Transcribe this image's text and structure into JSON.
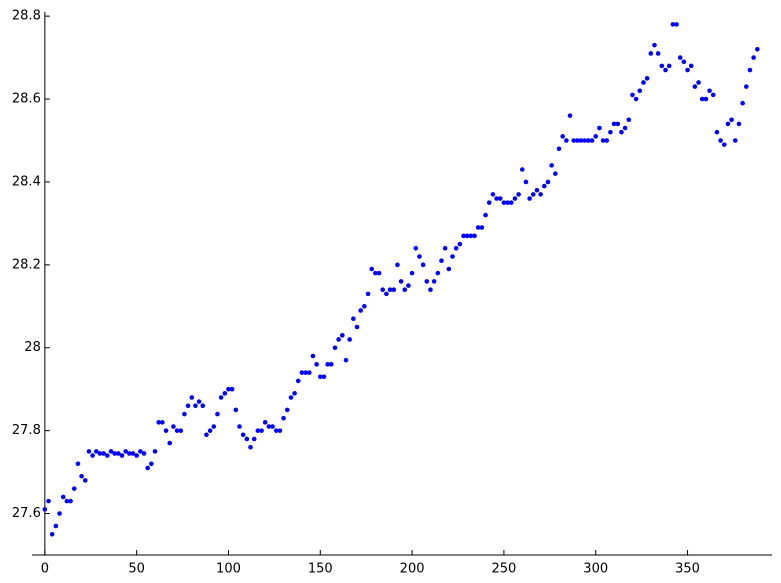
{
  "chart_data": {
    "type": "scatter",
    "color": "#0000ff",
    "xlim": [
      -7,
      396
    ],
    "ylim": [
      27.5,
      28.81
    ],
    "xticks": [
      0,
      50,
      100,
      150,
      200,
      250,
      300,
      350
    ],
    "yticks": [
      27.6,
      27.8,
      28,
      28.2,
      28.4,
      28.6,
      28.8
    ],
    "x": [
      0,
      2,
      4,
      6,
      8,
      10,
      12,
      14,
      16,
      18,
      20,
      22,
      24,
      26,
      28,
      30,
      32,
      34,
      36,
      38,
      40,
      42,
      44,
      46,
      48,
      50,
      52,
      54,
      56,
      58,
      60,
      62,
      64,
      66,
      68,
      70,
      72,
      74,
      76,
      78,
      80,
      82,
      84,
      86,
      88,
      90,
      92,
      94,
      96,
      98,
      100,
      102,
      104,
      106,
      108,
      110,
      112,
      114,
      116,
      118,
      120,
      122,
      124,
      126,
      128,
      130,
      132,
      134,
      136,
      138,
      140,
      142,
      144,
      146,
      148,
      150,
      152,
      154,
      156,
      158,
      160,
      162,
      164,
      166,
      168,
      170,
      172,
      174,
      176,
      178,
      180,
      182,
      184,
      186,
      188,
      190,
      192,
      194,
      196,
      198,
      200,
      202,
      204,
      206,
      208,
      210,
      212,
      214,
      216,
      218,
      220,
      222,
      224,
      226,
      228,
      230,
      232,
      234,
      236,
      238,
      240,
      242,
      244,
      246,
      248,
      250,
      252,
      254,
      256,
      258,
      260,
      262,
      264,
      266,
      268,
      270,
      272,
      274,
      276,
      278,
      280,
      282,
      284,
      286,
      288,
      290,
      292,
      294,
      296,
      298,
      300,
      302,
      304,
      306,
      308,
      310,
      312,
      314,
      316,
      318,
      320,
      322,
      324,
      326,
      328,
      330,
      332,
      334,
      336,
      338,
      340,
      342,
      344,
      346,
      348,
      350,
      352,
      354,
      356,
      358,
      360,
      362,
      364,
      366,
      368,
      370,
      372,
      374,
      376,
      378,
      380,
      382,
      384,
      386,
      388
    ],
    "values": [
      27.61,
      27.63,
      27.55,
      27.57,
      27.6,
      27.64,
      27.63,
      27.63,
      27.66,
      27.72,
      27.69,
      27.68,
      27.75,
      27.74,
      27.75,
      27.745,
      27.745,
      27.74,
      27.75,
      27.745,
      27.745,
      27.74,
      27.75,
      27.745,
      27.745,
      27.74,
      27.75,
      27.745,
      27.71,
      27.72,
      27.75,
      27.82,
      27.82,
      27.8,
      27.77,
      27.81,
      27.8,
      27.8,
      27.84,
      27.86,
      27.88,
      27.86,
      27.87,
      27.86,
      27.79,
      27.8,
      27.81,
      27.84,
      27.88,
      27.89,
      27.9,
      27.9,
      27.85,
      27.81,
      27.79,
      27.78,
      27.76,
      27.78,
      27.8,
      27.8,
      27.82,
      27.81,
      27.81,
      27.8,
      27.8,
      27.83,
      27.85,
      27.88,
      27.89,
      27.92,
      27.94,
      27.94,
      27.94,
      27.98,
      27.96,
      27.93,
      27.93,
      27.96,
      27.96,
      28,
      28.02,
      28.03,
      27.97,
      28.02,
      28.07,
      28.05,
      28.09,
      28.1,
      28.13,
      28.19,
      28.18,
      28.18,
      28.14,
      28.13,
      28.14,
      28.14,
      28.2,
      28.16,
      28.14,
      28.15,
      28.18,
      28.24,
      28.22,
      28.2,
      28.16,
      28.14,
      28.16,
      28.18,
      28.21,
      28.24,
      28.19,
      28.22,
      28.24,
      28.25,
      28.27,
      28.27,
      28.27,
      28.27,
      28.29,
      28.29,
      28.32,
      28.35,
      28.37,
      28.36,
      28.36,
      28.35,
      28.35,
      28.35,
      28.36,
      28.37,
      28.43,
      28.4,
      28.36,
      28.37,
      28.38,
      28.37,
      28.39,
      28.4,
      28.44,
      28.42,
      28.48,
      28.51,
      28.5,
      28.56,
      28.5,
      28.5,
      28.5,
      28.5,
      28.5,
      28.5,
      28.51,
      28.53,
      28.5,
      28.5,
      28.52,
      28.54,
      28.54,
      28.52,
      28.53,
      28.55,
      28.61,
      28.6,
      28.62,
      28.64,
      28.65,
      28.71,
      28.73,
      28.71,
      28.68,
      28.67,
      28.68,
      28.78,
      28.78,
      28.7,
      28.69,
      28.67,
      28.68,
      28.63,
      28.64,
      28.6,
      28.6,
      28.62,
      28.61,
      28.52,
      28.5,
      28.49,
      28.54,
      28.55,
      28.5,
      28.54,
      28.59,
      28.63,
      28.67,
      28.7,
      28.72
    ]
  }
}
